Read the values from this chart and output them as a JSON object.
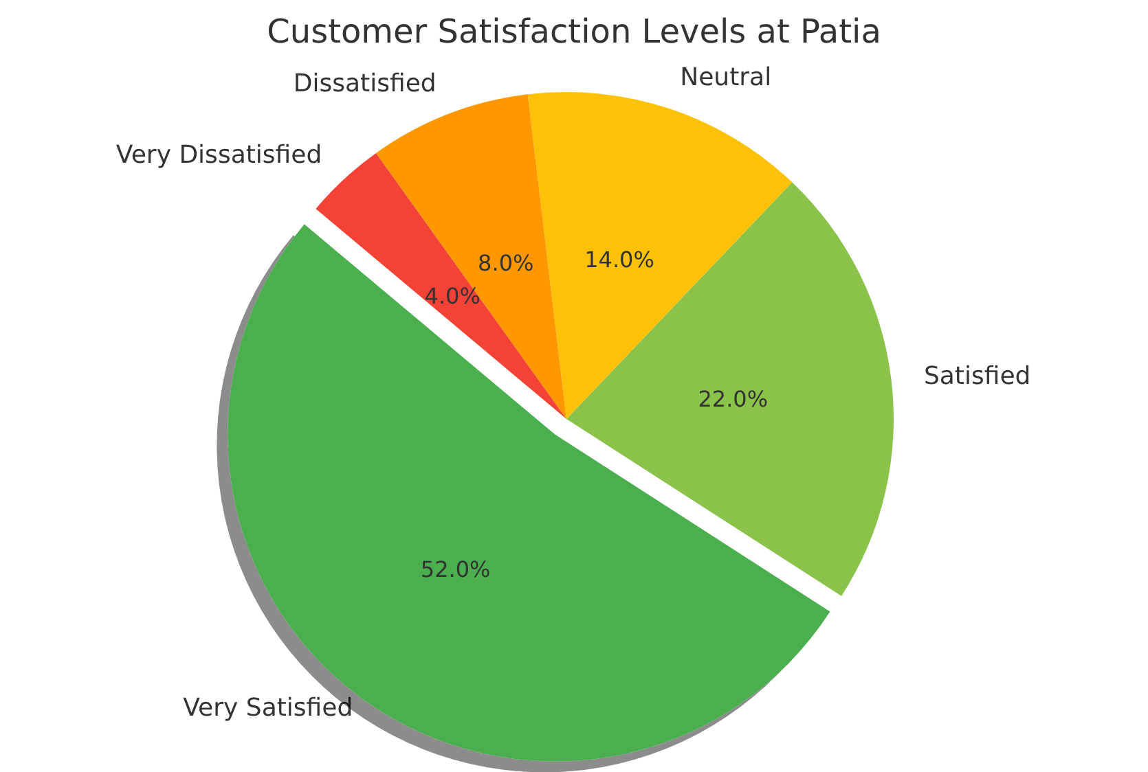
{
  "chart_data": {
    "type": "pie",
    "title": "Customer Satisfaction Levels at Patia",
    "categories": [
      "Very Satisfied",
      "Satisfied",
      "Neutral",
      "Dissatisfied",
      "Very Dissatisfied"
    ],
    "values": [
      52,
      22,
      14,
      8,
      4
    ],
    "colors": [
      "#4caf50",
      "#8bc34a",
      "#ffc107",
      "#ff9800",
      "#f44336"
    ],
    "value_labels": [
      "52.0%",
      "22.0%",
      "14.0%",
      "8.0%",
      "4.0%"
    ],
    "legend": false
  }
}
